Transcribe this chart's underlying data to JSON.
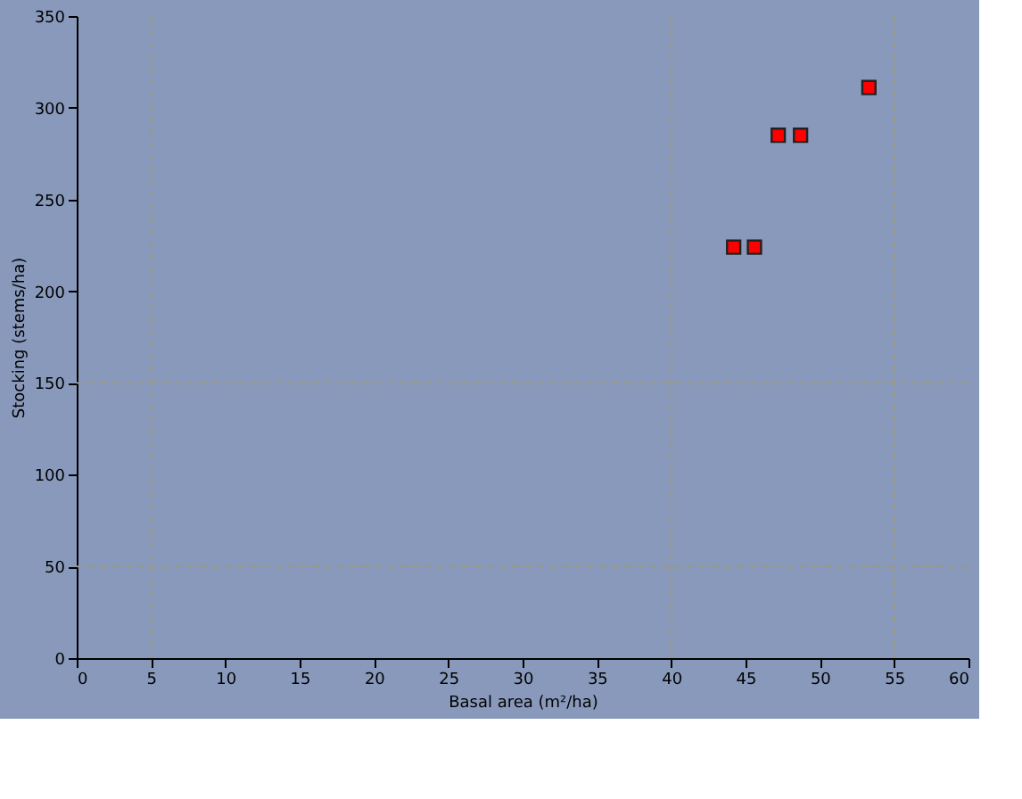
{
  "chart_data": {
    "type": "scatter",
    "xlabel": "Basal area (m²/ha)",
    "ylabel": "Stocking (stems/ha)",
    "x": [
      44.2,
      45.6,
      47.2,
      48.7,
      53.3
    ],
    "series": [
      {
        "color": "#ff0000",
        "values": [
          224,
          224,
          285,
          285,
          311
        ]
      }
    ],
    "marker": "square",
    "xlim": [
      0,
      60
    ],
    "xticks": [
      0,
      5,
      10,
      15,
      20,
      25,
      30,
      35,
      40,
      45,
      50,
      55,
      60
    ],
    "ylim": [
      0,
      350
    ],
    "yticks": [
      0,
      50,
      100,
      150,
      200,
      250,
      300,
      350
    ],
    "grid": false,
    "ref_lines": [
      {
        "axis": "x",
        "value": 5,
        "line_style": "dashed",
        "color": "#999988"
      },
      {
        "axis": "x",
        "value": 40,
        "line_style": "dashed",
        "color": "#999988"
      },
      {
        "axis": "x",
        "value": 55,
        "line_style": "dashed",
        "color": "#999988"
      },
      {
        "axis": "y",
        "value": 50,
        "line_style": "dashed",
        "color": "#999988"
      },
      {
        "axis": "y",
        "value": 150,
        "line_style": "dashed",
        "color": "#999988"
      }
    ]
  }
}
